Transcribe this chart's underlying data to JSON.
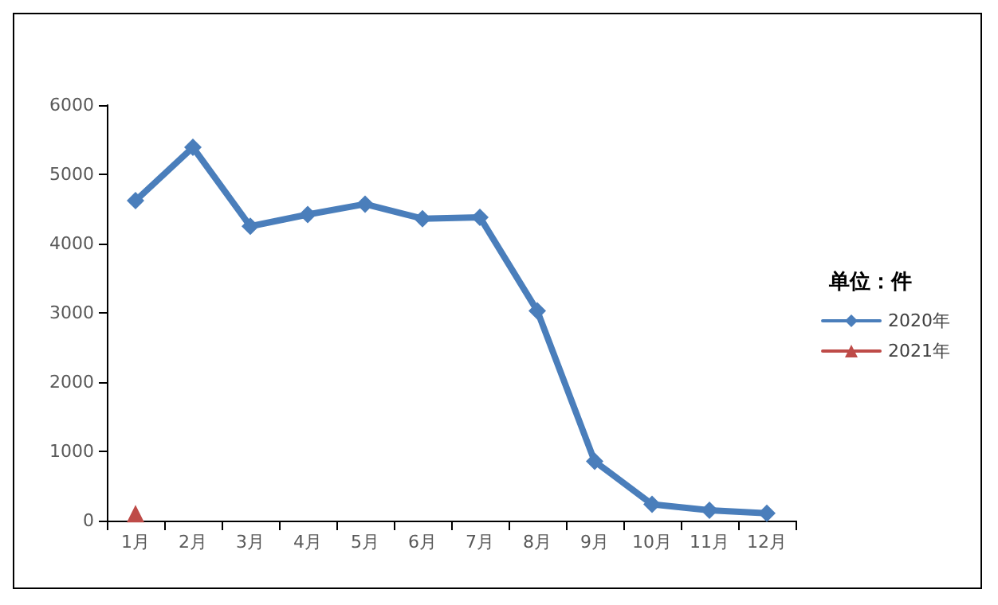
{
  "chart_data": {
    "type": "line",
    "legend_title": "单位：件",
    "categories": [
      "1月",
      "2月",
      "3月",
      "4月",
      "5月",
      "6月",
      "7月",
      "8月",
      "9月",
      "10月",
      "11月",
      "12月"
    ],
    "series": [
      {
        "name": "2020年",
        "color": "#4a7ebb",
        "marker": "diamond",
        "values": [
          4620,
          5390,
          4250,
          4420,
          4570,
          4360,
          4380,
          3030,
          855,
          235,
          150,
          107
        ]
      },
      {
        "name": "2021年",
        "color": "#be4b48",
        "marker": "triangle",
        "values": [
          100,
          null,
          null,
          null,
          null,
          null,
          null,
          null,
          null,
          null,
          null,
          null
        ]
      }
    ],
    "ylim": [
      0,
      6000
    ],
    "yticks": [
      0,
      1000,
      2000,
      3000,
      4000,
      5000,
      6000
    ],
    "grid": false,
    "legend": "right",
    "line_style": "solid"
  }
}
